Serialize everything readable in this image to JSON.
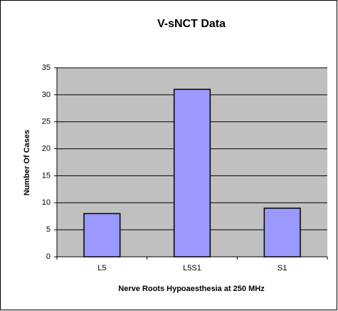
{
  "chart_data": {
    "type": "bar",
    "title": "V-sNCT Data",
    "x_label": "Nerve Roots Hypoaesthesia at 250 MHz",
    "y_label": "Number Of Cases",
    "categories": [
      "L5",
      "L5S1",
      "S1"
    ],
    "values": [
      8,
      31,
      9
    ],
    "color": "#9999ff",
    "ylim": [
      0,
      35
    ],
    "yticks": [
      0,
      5,
      10,
      15,
      20,
      25,
      30,
      35
    ],
    "grid": true
  }
}
